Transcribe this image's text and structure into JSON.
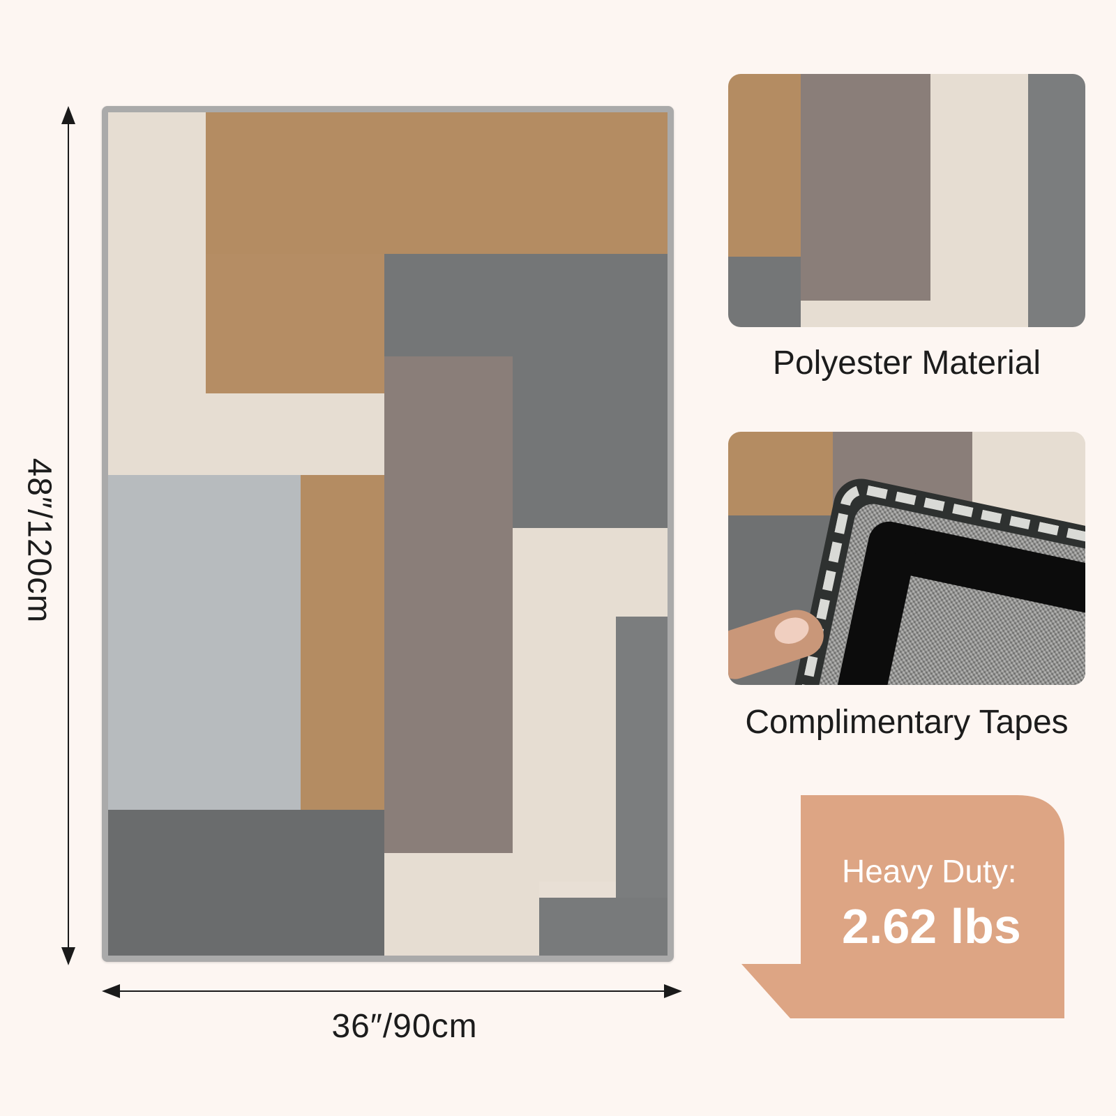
{
  "dimensions": {
    "height_label": "48″/120cm",
    "width_label": "36″/90cm"
  },
  "features": {
    "material_caption": "Polyester Material",
    "tapes_caption": "Complimentary Tapes"
  },
  "weight_tag": {
    "title": "Heavy Duty:",
    "value": "2.62 lbs"
  },
  "colors": {
    "background": "#fdf6f2",
    "rug_border": "#aaaaaa",
    "cream": "#e8dfd5",
    "tan": "#b48c62",
    "charcoal": "#757778",
    "taupe": "#8a7e7a",
    "light_gray": "#b8bcbf",
    "dark_gray": "#6a6c6d",
    "tag_fill": "#dda584"
  }
}
